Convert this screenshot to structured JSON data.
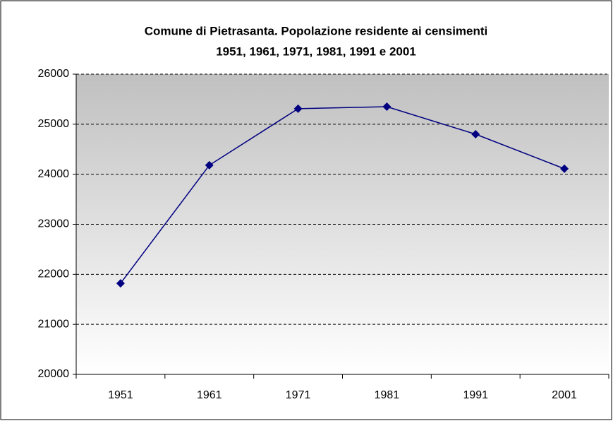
{
  "chart_data": {
    "type": "line",
    "title": [
      "Comune di Pietrasanta. Popolazione residente ai censimenti",
      "1951, 1961, 1971, 1981, 1991 e 2001"
    ],
    "categories": [
      "1951",
      "1961",
      "1971",
      "1981",
      "1991",
      "2001"
    ],
    "series": [
      {
        "color": "#000080",
        "values": [
          21820,
          24180,
          25310,
          25350,
          24800,
          24110
        ]
      }
    ],
    "ylim": [
      20000,
      26000
    ],
    "yticks": [
      20000,
      21000,
      22000,
      23000,
      24000,
      25000,
      26000
    ],
    "grid": true
  }
}
